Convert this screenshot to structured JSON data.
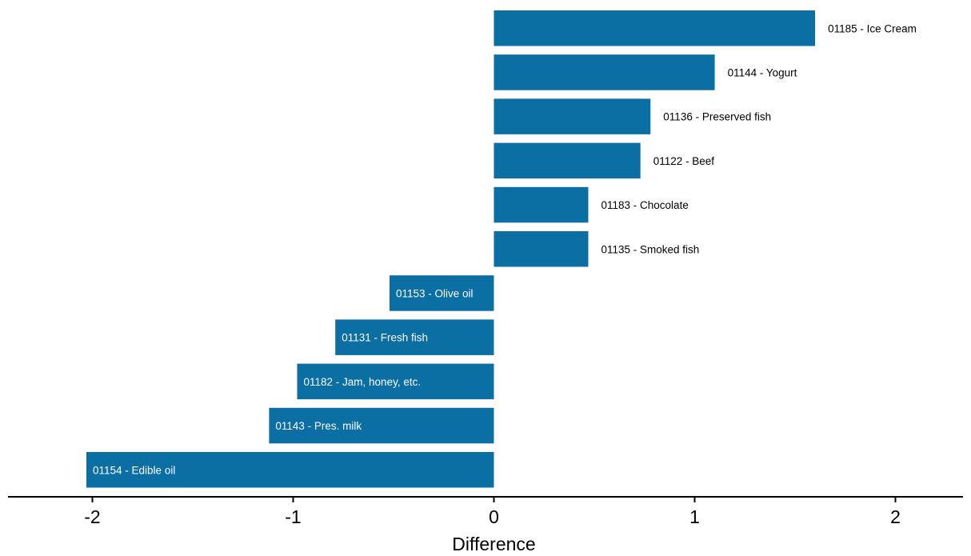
{
  "chart_data": {
    "type": "bar",
    "orientation": "horizontal",
    "title": "",
    "xlabel": "Difference",
    "ylabel": "",
    "xlim": [
      -2.4,
      2.4
    ],
    "xticks": [
      -2,
      -1,
      0,
      1,
      2
    ],
    "xtick_labels": [
      "-2",
      "-1",
      "0",
      "1",
      "2"
    ],
    "grid": false,
    "bar_color": "#0b6fa4",
    "categories": [
      "01185 - Ice Cream",
      "01144 - Yogurt",
      "01136 - Preserved fish",
      "01122 - Beef",
      "01183 - Chocolate",
      "01135 - Smoked fish",
      "01153 - Olive oil",
      "01131 - Fresh fish",
      "01182 - Jam, honey, etc.",
      "01143 - Pres. milk",
      "01154 - Edible oil"
    ],
    "values": [
      1.6,
      1.1,
      0.78,
      0.73,
      0.47,
      0.47,
      -0.52,
      -0.79,
      -0.98,
      -1.12,
      -2.03
    ]
  }
}
